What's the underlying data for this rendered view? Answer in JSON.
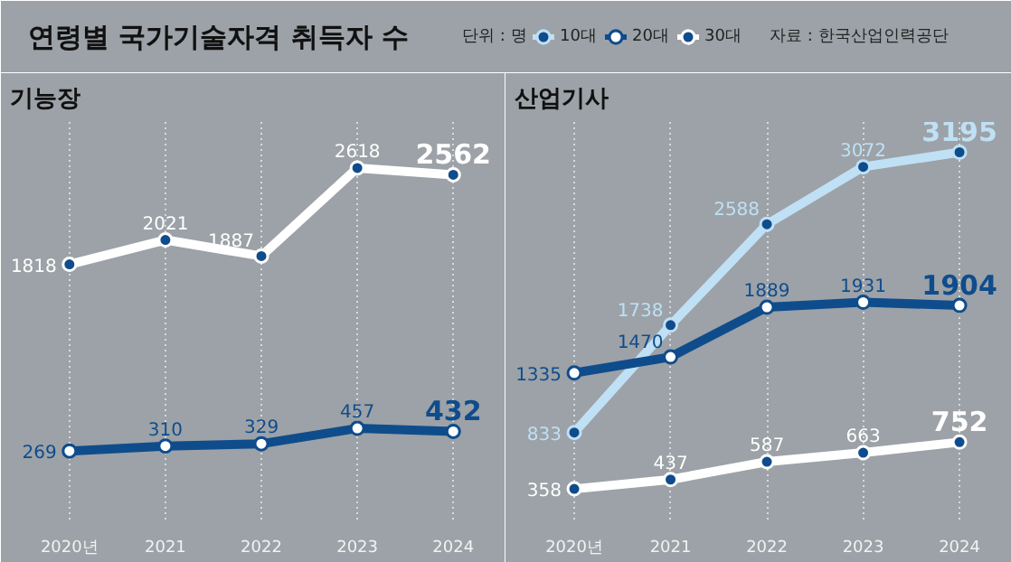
{
  "chart_data": [
    {
      "type": "line",
      "title": "연령별 국가기술자격 취득자 수",
      "subtitle": "기능장",
      "annotations": [
        "단위 : 명",
        "자료 : 한국산업인력공단"
      ],
      "categories": [
        "2020년",
        "2021",
        "2022",
        "2023",
        "2024"
      ],
      "ylim": [
        -300,
        3000
      ],
      "tick_labels": "x",
      "grid": "x",
      "legend": "top",
      "marker": "circle",
      "line_style": "solid",
      "data_labels": true,
      "series": [
        {
          "name": "20대",
          "color": "#0f4c8c",
          "values": [
            269,
            310,
            329,
            457,
            432
          ]
        },
        {
          "name": "30대",
          "color": "#ffffff",
          "values": [
            1818,
            2021,
            1887,
            2618,
            2562
          ]
        }
      ]
    },
    {
      "type": "line",
      "title": "산업기사",
      "categories": [
        "2020년",
        "2021",
        "2022",
        "2023",
        "2024"
      ],
      "ylim": [
        100,
        3450
      ],
      "tick_labels": "x",
      "grid": "x",
      "legend": "top",
      "marker": "circle",
      "line_style": "solid",
      "data_labels": true,
      "series": [
        {
          "name": "10대",
          "color": "#bfe0f5",
          "values": [
            833,
            1738,
            2588,
            3072,
            3195
          ]
        },
        {
          "name": "20대",
          "color": "#0f4c8c",
          "values": [
            1335,
            1470,
            1889,
            1931,
            1904
          ]
        },
        {
          "name": "30대",
          "color": "#ffffff",
          "values": [
            358,
            437,
            587,
            663,
            752
          ]
        }
      ]
    }
  ]
}
